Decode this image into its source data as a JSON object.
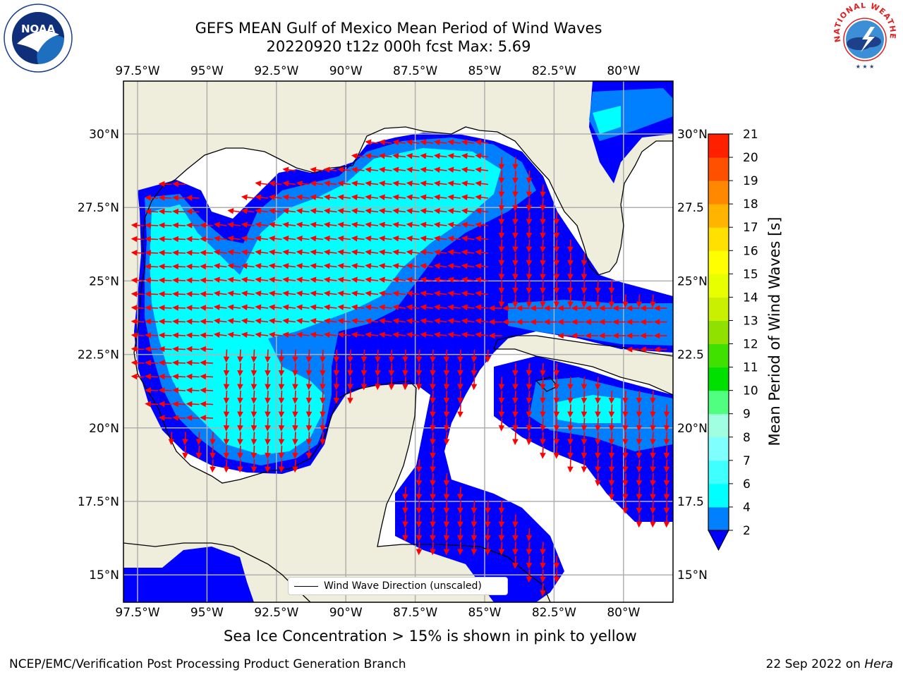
{
  "title": {
    "line1": "GEFS MEAN Gulf of Mexico Mean Period of Wind Waves",
    "line2": "20220920 t12z 000h fcst   Max: 5.69"
  },
  "logos": {
    "left": "NOAA",
    "right": "NATIONAL WEATHER SERVICE"
  },
  "map": {
    "lon_ticks": [
      "97.5°W",
      "95°W",
      "92.5°W",
      "90°W",
      "87.5°W",
      "85°W",
      "82.5°W",
      "80°W"
    ],
    "lat_ticks": [
      "30°N",
      "27.5°N",
      "25°N",
      "22.5°N",
      "20°N",
      "17.5°N",
      "15°N"
    ],
    "lat_ticks_right": [
      "30°N",
      "27.5",
      "25°N",
      "22.5",
      "20°N",
      "17.5",
      "15°N"
    ],
    "land_color": "#efeddb",
    "ocean_missing_color": "#ffffff",
    "arrow_color": "#ff0000",
    "grid": true
  },
  "colorbar": {
    "label": "Mean Period of Wind Waves [s]",
    "levels": [
      2,
      4,
      6,
      7,
      8,
      9,
      10,
      11,
      12,
      13,
      14,
      15,
      16,
      17,
      18,
      19,
      20,
      21
    ],
    "tick_labels": [
      "2",
      "4",
      "6",
      "7",
      "8",
      "9",
      "10",
      "11",
      "12",
      "13",
      "14",
      "15",
      "16",
      "17",
      "18",
      "19",
      "20",
      "21"
    ],
    "colors": [
      "#0080ff",
      "#00ffff",
      "#40ffff",
      "#80ffff",
      "#a0ffe0",
      "#50ff80",
      "#00e000",
      "#40e000",
      "#90e000",
      "#c8f000",
      "#e8ff00",
      "#ffff00",
      "#ffe000",
      "#ffb400",
      "#ff8800",
      "#ff5000",
      "#ff2000"
    ],
    "under_color": "#0000ff",
    "extend": "min"
  },
  "legend": {
    "label": "Wind Wave Direction (unscaled)"
  },
  "subtitle": "Sea Ice Concentration > 15% is shown in pink to yellow",
  "footer": {
    "left": "NCEP/EMC/Verification Post Processing Product Generation Branch",
    "right_prefix": "22 Sep 2022 on ",
    "right_italic": "Hera"
  }
}
